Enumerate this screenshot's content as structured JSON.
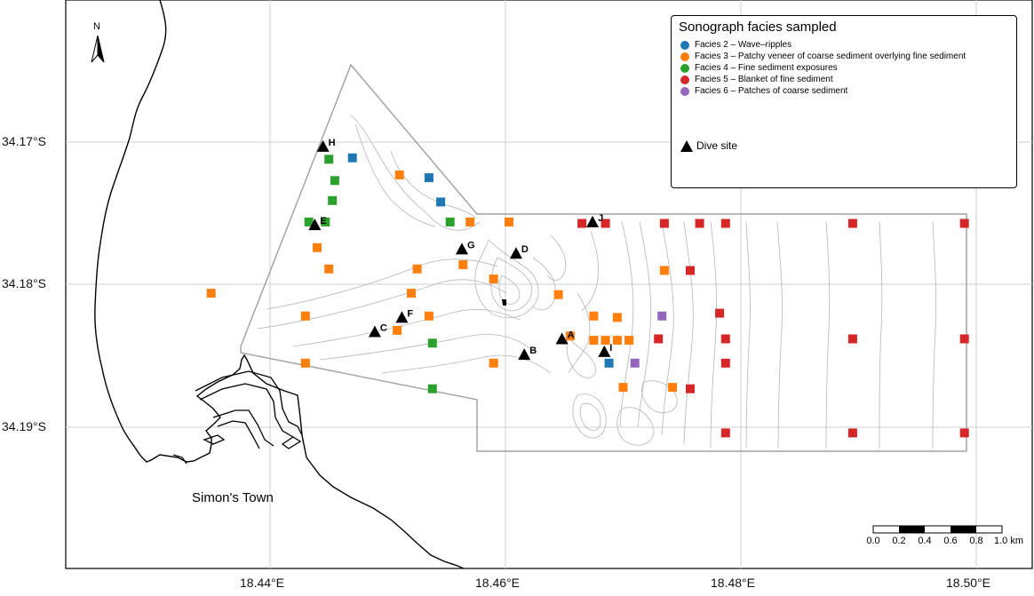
{
  "map": {
    "place_label": "Simon's Town",
    "north_label": "N"
  },
  "axes": {
    "y_ticks": [
      "34.17°S",
      "34.18°S",
      "34.19°S"
    ],
    "x_ticks": [
      "18.44°E",
      "18.46°E",
      "18.48°E",
      "18.50°E"
    ]
  },
  "legend": {
    "title": "Sonograph facies sampled",
    "items": [
      {
        "label": "Facies 2 – Wave–ripples",
        "color": "#1f77b4"
      },
      {
        "label": "Facies 3 – Patchy veneer of coarse sediment overlying fine sediment",
        "color": "#ff7f0e"
      },
      {
        "label": "Facies 4 – Fine sediment exposures",
        "color": "#2ca02c"
      },
      {
        "label": "Facies 5 – Blanket of fine sediment",
        "color": "#d62728"
      },
      {
        "label": "Facies 6 – Patches of coarse sediment",
        "color": "#9467bd"
      }
    ],
    "dive_label": "Dive site"
  },
  "scalebar": {
    "labels": [
      "0.0",
      "0.2",
      "0.4",
      "0.6",
      "0.8",
      "1.0 km"
    ]
  },
  "dive_sites": [
    {
      "name": "H",
      "lon": 18.4445,
      "lat": -34.1703
    },
    {
      "name": "E",
      "lon": 18.4438,
      "lat": -34.1758
    },
    {
      "name": "G",
      "lon": 18.4563,
      "lat": -34.1775
    },
    {
      "name": "D",
      "lon": 18.4609,
      "lat": -34.1778
    },
    {
      "name": "J",
      "lon": 18.4674,
      "lat": -34.1756
    },
    {
      "name": "C",
      "lon": 18.4489,
      "lat": -34.1833
    },
    {
      "name": "F",
      "lon": 18.4512,
      "lat": -34.1823
    },
    {
      "name": "A",
      "lon": 18.4648,
      "lat": -34.1838
    },
    {
      "name": "B",
      "lon": 18.4616,
      "lat": -34.1849
    },
    {
      "name": "I",
      "lon": 18.4684,
      "lat": -34.1847
    }
  ],
  "samples": [
    {
      "facies": 2,
      "lon": 18.447,
      "lat": -34.1711
    },
    {
      "facies": 2,
      "lon": 18.4535,
      "lat": -34.1725
    },
    {
      "facies": 2,
      "lon": 18.4545,
      "lat": -34.1742
    },
    {
      "facies": 2,
      "lon": 18.4688,
      "lat": -34.1855
    },
    {
      "facies": 4,
      "lon": 18.445,
      "lat": -34.1712
    },
    {
      "facies": 4,
      "lon": 18.4455,
      "lat": -34.1727
    },
    {
      "facies": 4,
      "lon": 18.4453,
      "lat": -34.1741
    },
    {
      "facies": 4,
      "lon": 18.4433,
      "lat": -34.1756
    },
    {
      "facies": 4,
      "lon": 18.4447,
      "lat": -34.1756
    },
    {
      "facies": 4,
      "lon": 18.4553,
      "lat": -34.1756
    },
    {
      "facies": 4,
      "lon": 18.4538,
      "lat": -34.1841
    },
    {
      "facies": 4,
      "lon": 18.4538,
      "lat": -34.1873
    },
    {
      "facies": 3,
      "lon": 18.451,
      "lat": -34.1723
    },
    {
      "facies": 3,
      "lon": 18.457,
      "lat": -34.1756
    },
    {
      "facies": 3,
      "lon": 18.4603,
      "lat": -34.1756
    },
    {
      "facies": 3,
      "lon": 18.444,
      "lat": -34.1774
    },
    {
      "facies": 3,
      "lon": 18.445,
      "lat": -34.1789
    },
    {
      "facies": 3,
      "lon": 18.4525,
      "lat": -34.1789
    },
    {
      "facies": 3,
      "lon": 18.459,
      "lat": -34.1796
    },
    {
      "facies": 3,
      "lon": 18.4564,
      "lat": -34.1786
    },
    {
      "facies": 3,
      "lon": 18.435,
      "lat": -34.1806
    },
    {
      "facies": 3,
      "lon": 18.452,
      "lat": -34.1806
    },
    {
      "facies": 3,
      "lon": 18.4645,
      "lat": -34.1807
    },
    {
      "facies": 3,
      "lon": 18.443,
      "lat": -34.1822
    },
    {
      "facies": 3,
      "lon": 18.4535,
      "lat": -34.1822
    },
    {
      "facies": 3,
      "lon": 18.4675,
      "lat": -34.1822
    },
    {
      "facies": 3,
      "lon": 18.4695,
      "lat": -34.1823
    },
    {
      "facies": 3,
      "lon": 18.4508,
      "lat": -34.1832
    },
    {
      "facies": 3,
      "lon": 18.4655,
      "lat": -34.1836
    },
    {
      "facies": 3,
      "lon": 18.4675,
      "lat": -34.1839
    },
    {
      "facies": 3,
      "lon": 18.4685,
      "lat": -34.1839
    },
    {
      "facies": 3,
      "lon": 18.4695,
      "lat": -34.1839
    },
    {
      "facies": 3,
      "lon": 18.4705,
      "lat": -34.1839
    },
    {
      "facies": 3,
      "lon": 18.443,
      "lat": -34.1855
    },
    {
      "facies": 3,
      "lon": 18.459,
      "lat": -34.1855
    },
    {
      "facies": 3,
      "lon": 18.47,
      "lat": -34.1872
    },
    {
      "facies": 3,
      "lon": 18.4742,
      "lat": -34.1872
    },
    {
      "facies": 3,
      "lon": 18.4735,
      "lat": -34.179
    },
    {
      "facies": 5,
      "lon": 18.4665,
      "lat": -34.1757
    },
    {
      "facies": 5,
      "lon": 18.4685,
      "lat": -34.1757
    },
    {
      "facies": 5,
      "lon": 18.4735,
      "lat": -34.1757
    },
    {
      "facies": 5,
      "lon": 18.4765,
      "lat": -34.1757
    },
    {
      "facies": 5,
      "lon": 18.4787,
      "lat": -34.1757
    },
    {
      "facies": 5,
      "lon": 18.4895,
      "lat": -34.1757
    },
    {
      "facies": 5,
      "lon": 18.499,
      "lat": -34.1757
    },
    {
      "facies": 5,
      "lon": 18.4757,
      "lat": -34.179
    },
    {
      "facies": 5,
      "lon": 18.4782,
      "lat": -34.182
    },
    {
      "facies": 5,
      "lon": 18.473,
      "lat": -34.1838
    },
    {
      "facies": 5,
      "lon": 18.4787,
      "lat": -34.1838
    },
    {
      "facies": 5,
      "lon": 18.4895,
      "lat": -34.1838
    },
    {
      "facies": 5,
      "lon": 18.499,
      "lat": -34.1838
    },
    {
      "facies": 5,
      "lon": 18.4787,
      "lat": -34.1855
    },
    {
      "facies": 5,
      "lon": 18.4757,
      "lat": -34.1873
    },
    {
      "facies": 5,
      "lon": 18.4787,
      "lat": -34.1904
    },
    {
      "facies": 5,
      "lon": 18.4895,
      "lat": -34.1904
    },
    {
      "facies": 5,
      "lon": 18.499,
      "lat": -34.1904
    },
    {
      "facies": 6,
      "lon": 18.4733,
      "lat": -34.1822
    },
    {
      "facies": 6,
      "lon": 18.471,
      "lat": -34.1855
    }
  ]
}
